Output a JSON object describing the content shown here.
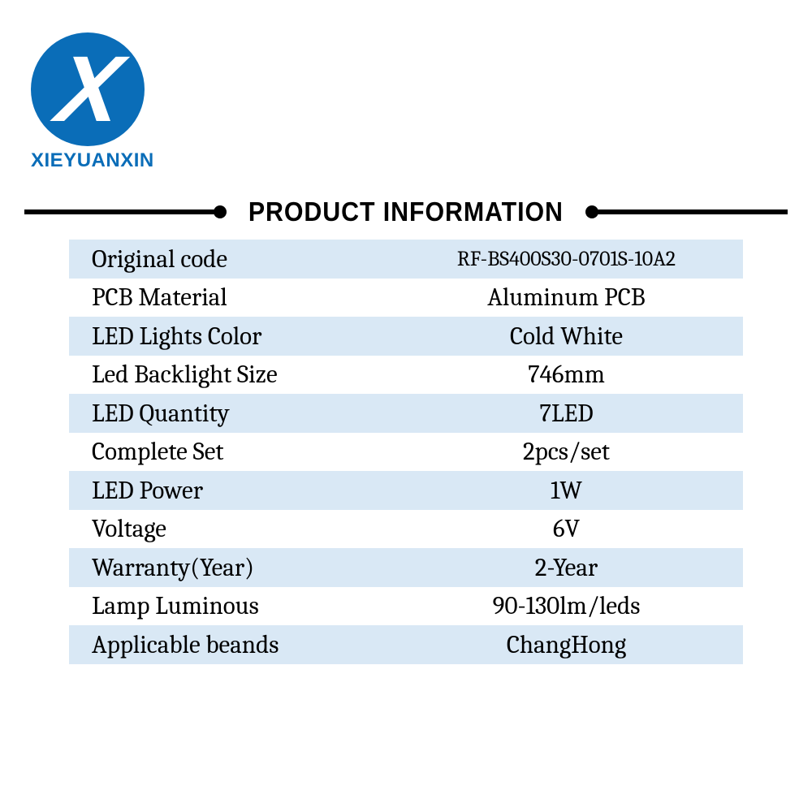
{
  "brand": {
    "logo_letter": "X",
    "name": "XIEYUANXIN",
    "color": "#0a6db8"
  },
  "heading": "PRODUCT INFORMATION",
  "table": {
    "stripe_color": "#d9e8f5",
    "rows": [
      {
        "label": "Original code",
        "value": "RF-BS400S30-0701S-10A2",
        "smaller": true
      },
      {
        "label": "PCB Material",
        "value": "Aluminum PCB"
      },
      {
        "label": "LED Lights Color",
        "value": "Cold White"
      },
      {
        "label": "Led Backlight Size",
        "value": "746mm"
      },
      {
        "label": "LED Quantity",
        "value": "7LED"
      },
      {
        "label": "Complete Set",
        "value": "2pcs/set"
      },
      {
        "label": "LED Power",
        "value": "1W"
      },
      {
        "label": "Voltage",
        "value": "6V"
      },
      {
        "label": "Warranty(Year)",
        "value": "2-Year"
      },
      {
        "label": "Lamp Luminous",
        "value": "90-130lm/leds"
      },
      {
        "label": "Applicable beands",
        "value": "ChangHong"
      }
    ]
  }
}
